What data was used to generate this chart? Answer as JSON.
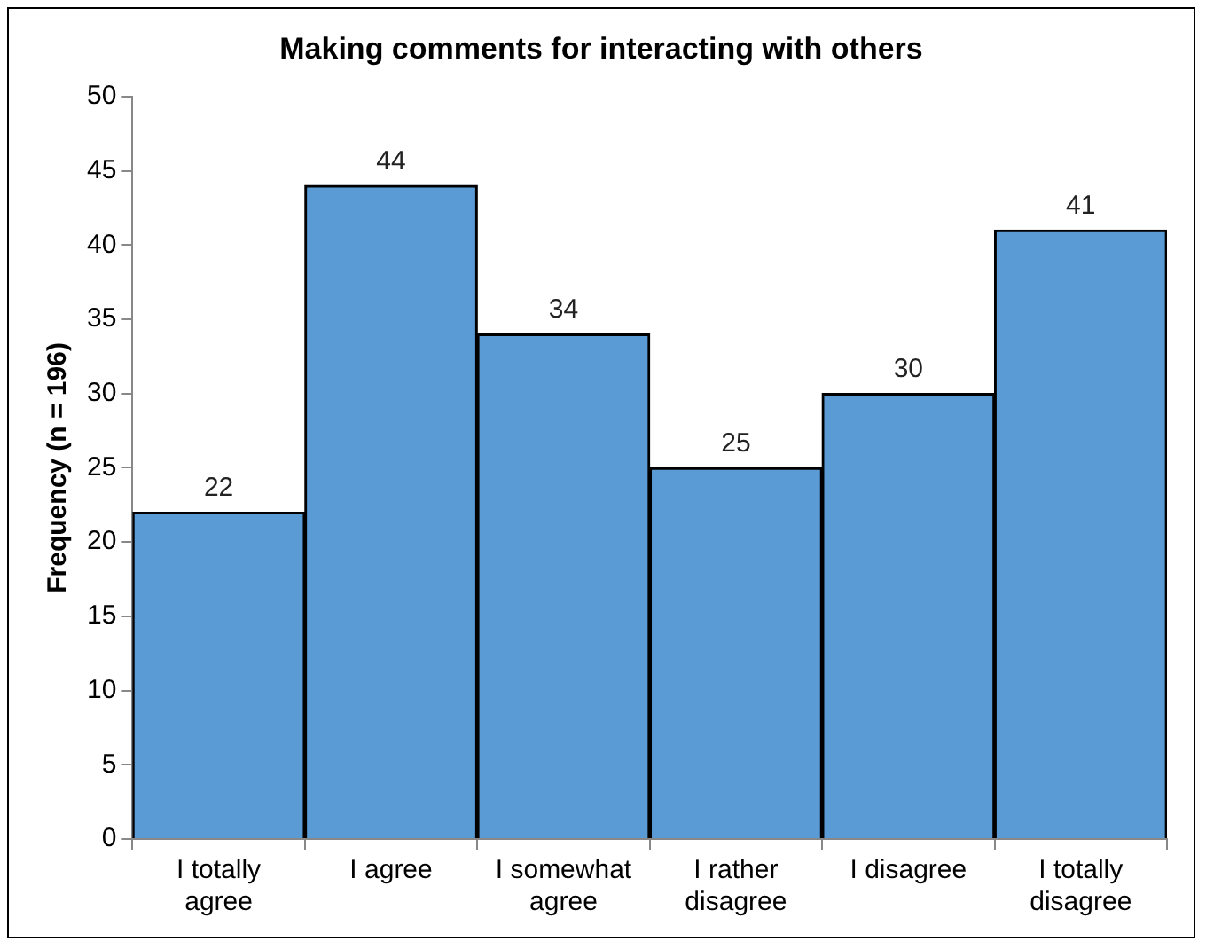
{
  "chart_data": {
    "type": "bar",
    "title": "Making comments for interacting with others",
    "ylabel": "Frequency (n = 196)",
    "categories": [
      "I totally agree",
      "I agree",
      "I somewhat agree",
      "I rather disagree",
      "I disagree",
      "I totally disagree"
    ],
    "values": [
      22,
      44,
      34,
      25,
      30,
      41
    ],
    "color": "#5b9bd5",
    "ylim": [
      0,
      50
    ],
    "yticks": [
      0,
      5,
      10,
      15,
      20,
      25,
      30,
      35,
      40,
      45,
      50
    ],
    "grid": false,
    "legend": false,
    "data_labels": true
  }
}
